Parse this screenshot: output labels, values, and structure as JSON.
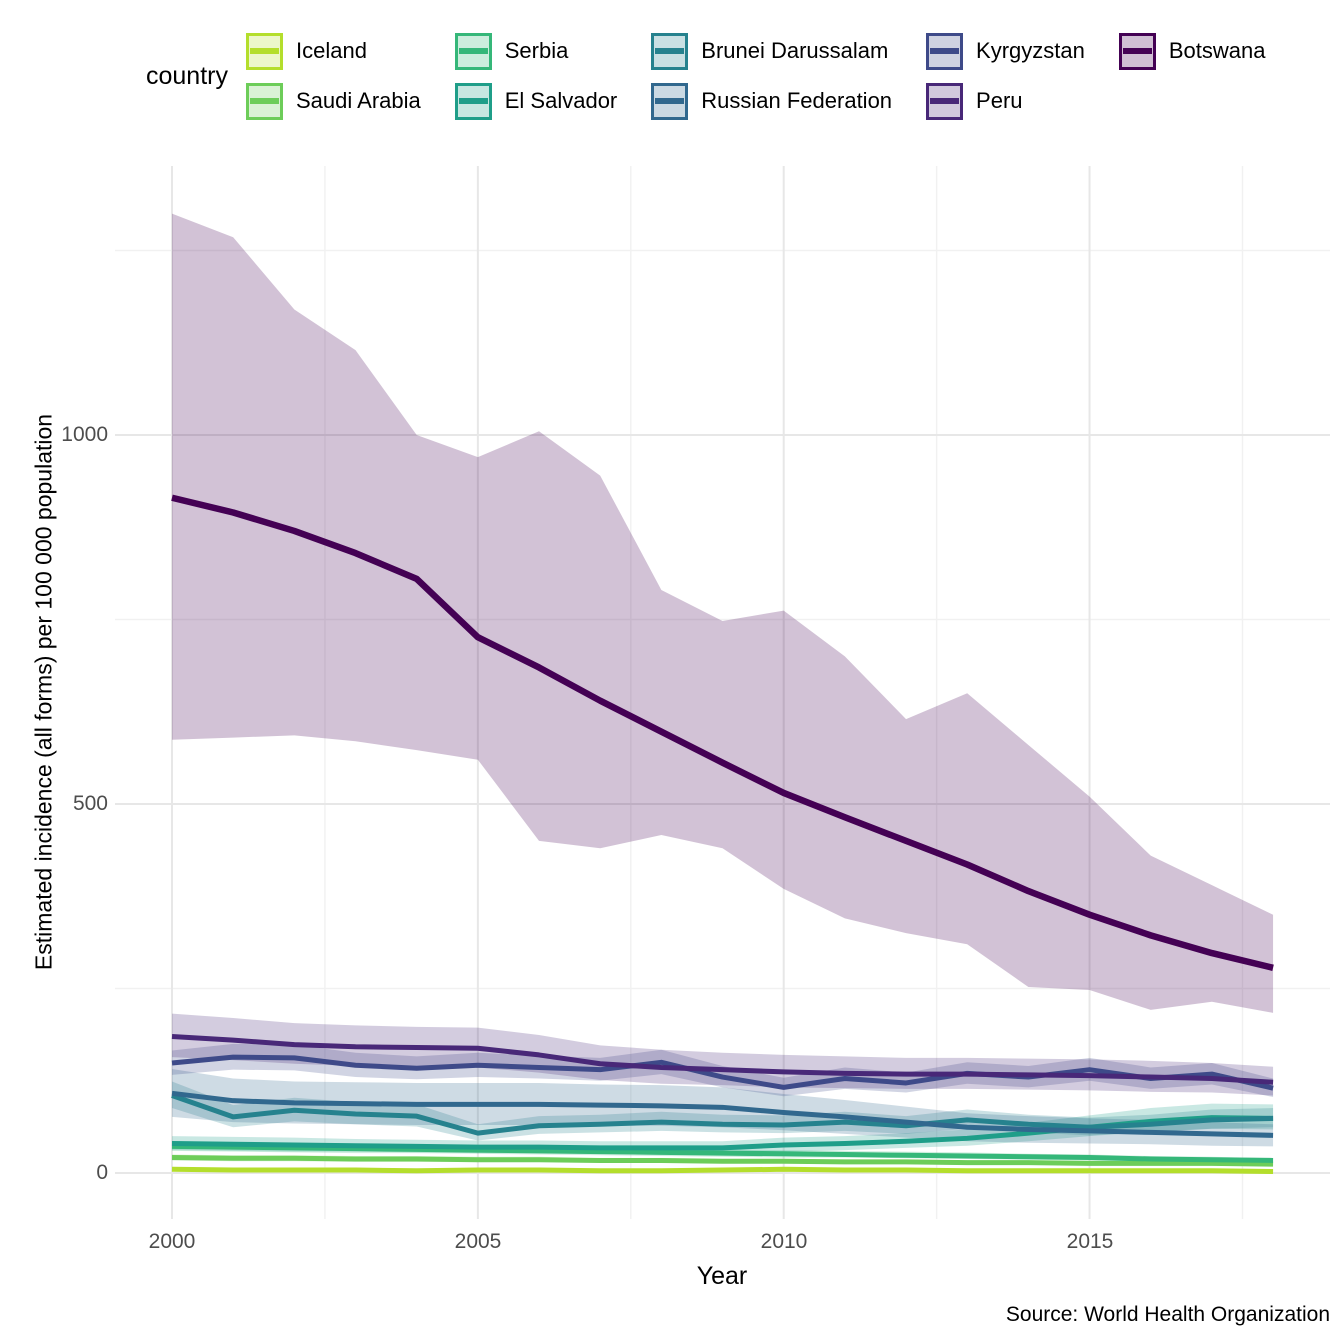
{
  "chart_data": {
    "type": "line",
    "title": "",
    "xlabel": "Year",
    "ylabel": "Estimated incidence (all forms) per 100 000 population",
    "caption": "Source: World Health Organization",
    "legend_title": "country",
    "legend_position": "top",
    "grid": true,
    "x": [
      2000,
      2001,
      2002,
      2003,
      2004,
      2005,
      2006,
      2007,
      2008,
      2009,
      2010,
      2011,
      2012,
      2013,
      2014,
      2015,
      2016,
      2017,
      2018
    ],
    "x_ticks": [
      2000,
      2005,
      2010,
      2015
    ],
    "x_tick_labels": [
      "2000",
      "2005",
      "2010",
      "2015"
    ],
    "x_minor": [
      2002.5,
      2007.5,
      2012.5,
      2017.5
    ],
    "y_ticks": [
      0,
      500,
      1000
    ],
    "y_tick_labels": [
      "0",
      "500",
      "1000"
    ],
    "y_minor": [
      250,
      750,
      1250
    ],
    "xlim": [
      1999.1,
      2018.9
    ],
    "ylim": [
      -60,
      1365
    ],
    "band_meaning": "uncertainty interval (lo/hi) around each country estimate",
    "series": [
      {
        "name": "Iceland",
        "color": "#B4DE2C",
        "values": [
          5,
          4,
          4,
          4,
          3,
          4,
          4,
          3,
          3,
          4,
          5,
          4,
          4,
          3,
          3,
          3,
          3,
          3,
          2
        ],
        "lo": [
          3,
          3,
          3,
          3,
          2,
          3,
          3,
          2,
          2,
          3,
          4,
          3,
          3,
          2,
          2,
          2,
          2,
          2,
          1
        ],
        "hi": [
          7,
          6,
          6,
          5,
          5,
          6,
          6,
          5,
          5,
          6,
          8,
          6,
          6,
          5,
          5,
          5,
          5,
          5,
          4
        ]
      },
      {
        "name": "Saudi Arabia",
        "color": "#6DCD59",
        "values": [
          21,
          20,
          20,
          19,
          19,
          18,
          18,
          17,
          17,
          16,
          16,
          15,
          15,
          14,
          14,
          13,
          13,
          13,
          12
        ],
        "lo": [
          17,
          16,
          16,
          15,
          15,
          15,
          15,
          14,
          14,
          13,
          13,
          12,
          12,
          11,
          11,
          11,
          11,
          11,
          10
        ],
        "hi": [
          25,
          24,
          24,
          23,
          23,
          22,
          22,
          20,
          20,
          19,
          19,
          18,
          18,
          17,
          17,
          16,
          16,
          16,
          15
        ]
      },
      {
        "name": "Serbia",
        "color": "#35B779",
        "values": [
          36,
          35,
          34,
          33,
          32,
          31,
          30,
          29,
          28,
          27,
          26,
          25,
          24,
          23,
          22,
          21,
          19,
          18,
          17
        ],
        "lo": [
          30,
          29,
          28,
          27,
          27,
          26,
          25,
          24,
          23,
          22,
          21,
          21,
          20,
          19,
          18,
          17,
          16,
          15,
          14
        ],
        "hi": [
          43,
          42,
          41,
          40,
          38,
          37,
          36,
          35,
          34,
          32,
          31,
          30,
          29,
          28,
          26,
          25,
          23,
          22,
          20
        ]
      },
      {
        "name": "El Salvador",
        "color": "#1F9E89",
        "values": [
          40,
          39,
          38,
          37,
          36,
          35,
          35,
          34,
          34,
          34,
          38,
          40,
          43,
          47,
          54,
          62,
          70,
          75,
          74
        ],
        "lo": [
          31,
          30,
          29,
          29,
          28,
          27,
          27,
          26,
          26,
          26,
          29,
          31,
          34,
          37,
          43,
          50,
          56,
          60,
          59
        ],
        "hi": [
          50,
          49,
          48,
          46,
          45,
          44,
          44,
          43,
          43,
          43,
          48,
          50,
          54,
          59,
          68,
          78,
          88,
          94,
          93
        ]
      },
      {
        "name": "Brunei Darussalam",
        "color": "#26828E",
        "values": [
          105,
          76,
          85,
          80,
          77,
          54,
          64,
          66,
          69,
          66,
          65,
          69,
          64,
          72,
          66,
          62,
          66,
          72,
          74
        ],
        "lo": [
          88,
          62,
          70,
          66,
          63,
          44,
          53,
          55,
          57,
          55,
          54,
          57,
          53,
          60,
          55,
          51,
          55,
          60,
          62
        ],
        "hi": [
          124,
          92,
          102,
          96,
          93,
          66,
          77,
          79,
          83,
          79,
          78,
          83,
          77,
          86,
          79,
          75,
          79,
          86,
          88
        ]
      },
      {
        "name": "Russian Federation",
        "color": "#31688E",
        "values": [
          108,
          98,
          95,
          94,
          93,
          93,
          93,
          92,
          91,
          89,
          82,
          76,
          69,
          62,
          59,
          57,
          55,
          53,
          51
        ],
        "lo": [
          76,
          69,
          67,
          66,
          65,
          65,
          65,
          64,
          64,
          62,
          58,
          53,
          48,
          43,
          41,
          40,
          39,
          37,
          36
        ],
        "hi": [
          141,
          128,
          124,
          123,
          122,
          122,
          122,
          120,
          119,
          116,
          107,
          99,
          90,
          81,
          77,
          74,
          72,
          69,
          66
        ]
      },
      {
        "name": "Kyrgyzstan",
        "color": "#3E4A89",
        "values": [
          149,
          157,
          156,
          146,
          142,
          146,
          143,
          140,
          150,
          130,
          116,
          128,
          122,
          135,
          130,
          140,
          128,
          134,
          115
        ],
        "lo": [
          133,
          140,
          139,
          130,
          127,
          130,
          128,
          125,
          134,
          116,
          104,
          114,
          109,
          121,
          116,
          125,
          114,
          120,
          103
        ],
        "hi": [
          166,
          175,
          174,
          163,
          158,
          163,
          159,
          156,
          167,
          145,
          129,
          143,
          136,
          150,
          145,
          156,
          143,
          149,
          128
        ]
      },
      {
        "name": "Peru",
        "color": "#482878",
        "values": [
          185,
          180,
          174,
          171,
          170,
          169,
          160,
          148,
          143,
          140,
          137,
          135,
          134,
          134,
          133,
          132,
          130,
          128,
          123
        ],
        "lo": [
          157,
          153,
          148,
          145,
          144,
          143,
          136,
          126,
          121,
          119,
          116,
          115,
          114,
          114,
          113,
          112,
          110,
          109,
          105
        ],
        "hi": [
          216,
          210,
          203,
          200,
          198,
          197,
          187,
          173,
          167,
          163,
          160,
          158,
          156,
          156,
          155,
          154,
          152,
          149,
          144
        ]
      },
      {
        "name": "Botswana",
        "color": "#440154",
        "values": [
          915,
          895,
          870,
          840,
          805,
          726,
          685,
          640,
          598,
          556,
          515,
          482,
          450,
          418,
          382,
          350,
          322,
          298,
          278
        ],
        "lo": [
          587,
          590,
          593,
          585,
          573,
          560,
          450,
          440,
          458,
          440,
          385,
          345,
          325,
          310,
          252,
          248,
          221,
          232,
          217
        ],
        "hi": [
          1300,
          1268,
          1170,
          1115,
          1000,
          970,
          1005,
          945,
          790,
          748,
          762,
          700,
          615,
          650,
          580,
          510,
          430,
          390,
          350
        ]
      }
    ]
  }
}
